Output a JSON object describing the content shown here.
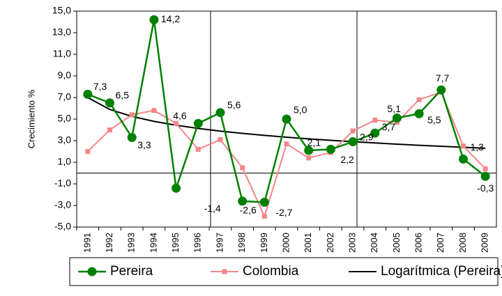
{
  "chart_data": {
    "type": "line",
    "y_label": "Crecimiento %",
    "categories": [
      "1991",
      "1992",
      "1993",
      "1994",
      "1995",
      "1996",
      "1997",
      "1998",
      "1999",
      "2000",
      "2001",
      "2002",
      "2003",
      "2004",
      "2005",
      "2006",
      "2007",
      "2008",
      "2009"
    ],
    "series": [
      {
        "name": "Pereira",
        "color": "#008000",
        "marker": "circle",
        "values": [
          7.3,
          6.5,
          3.3,
          14.2,
          -1.4,
          4.6,
          5.6,
          -2.6,
          -2.7,
          5.0,
          2.1,
          2.2,
          2.9,
          3.7,
          5.1,
          5.5,
          7.7,
          1.3,
          -0.3
        ],
        "value_labels": [
          "7,3",
          "6,5",
          "3,3",
          "14,2",
          "-1,4",
          "4,6",
          "5,6",
          "-2,6",
          "-2,7",
          "5,0",
          "2,1",
          "2,2",
          "2,9",
          "3,7",
          "5,1",
          "5,5",
          "7,7",
          "1,3",
          "-0,3"
        ]
      },
      {
        "name": "Colombia",
        "color": "#f4868a",
        "marker": "square",
        "values": [
          2.0,
          4.0,
          5.4,
          5.8,
          4.6,
          2.2,
          3.1,
          0.5,
          -4.0,
          2.7,
          1.4,
          1.9,
          3.9,
          4.9,
          4.7,
          6.8,
          7.5,
          2.5,
          0.4
        ]
      },
      {
        "name": "Logarítmica (Pereira)",
        "color": "#000000",
        "marker": "none",
        "values": [
          7.0,
          5.89,
          5.25,
          4.79,
          4.43,
          4.14,
          3.89,
          3.68,
          3.49,
          3.32,
          3.17,
          3.03,
          2.91,
          2.79,
          2.68,
          2.57,
          2.48,
          2.39,
          2.3
        ]
      }
    ],
    "ylim": [
      -5,
      15
    ],
    "yticks": [
      {
        "value": -5,
        "label": "-5,0"
      },
      {
        "value": -3,
        "label": "-3,0"
      },
      {
        "value": -1,
        "label": "-1,0"
      },
      {
        "value": 1,
        "label": "1,0"
      },
      {
        "value": 3,
        "label": "3,0"
      },
      {
        "value": 5,
        "label": "5,0"
      },
      {
        "value": 7,
        "label": "7,0"
      },
      {
        "value": 9,
        "label": "9,0"
      },
      {
        "value": 11,
        "label": "11,0"
      },
      {
        "value": 13,
        "label": "13,0"
      },
      {
        "value": 15,
        "label": "15,0"
      }
    ]
  }
}
